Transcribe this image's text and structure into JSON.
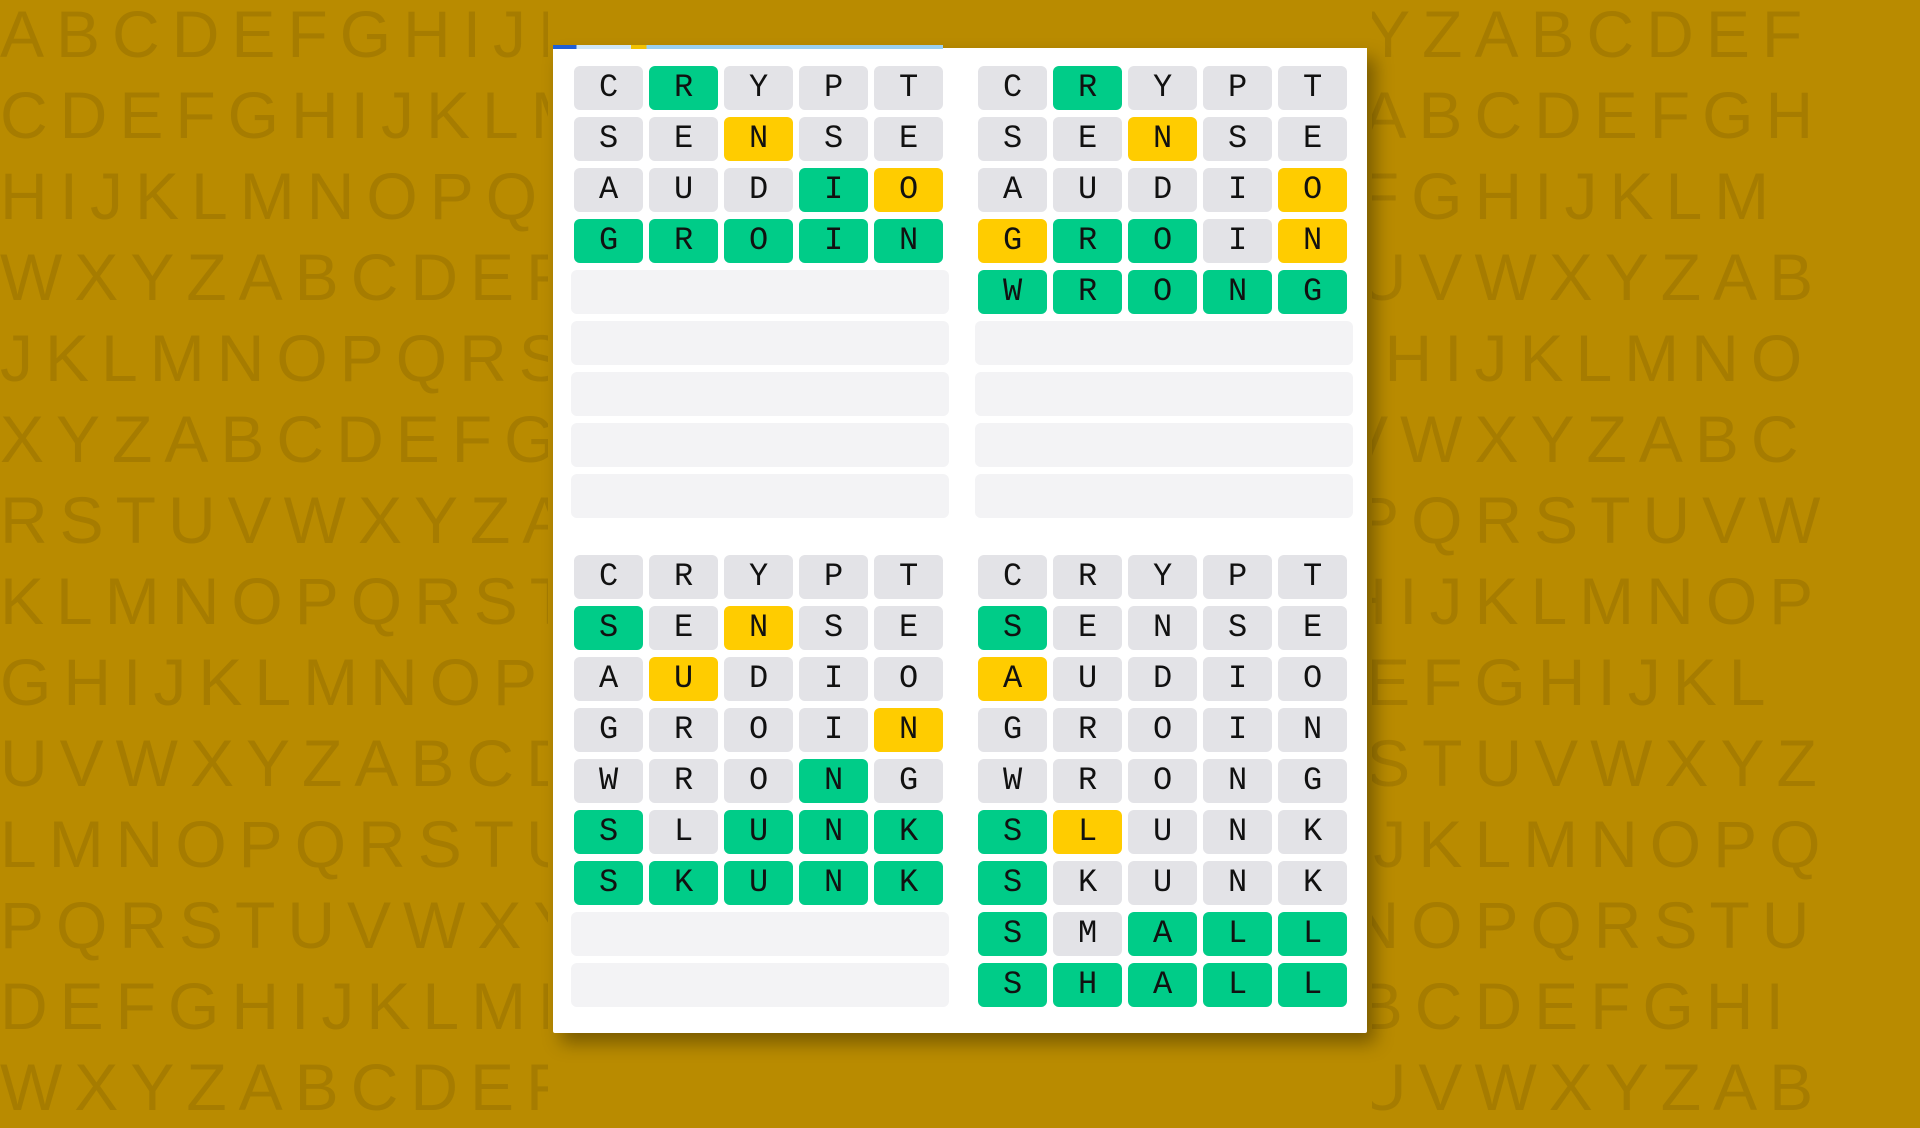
{
  "background_letter_rows": [
    "ABCDEFGHIJKLMNOPQRSTUVWXYZABCDEF",
    "CDEFGHIJKLMNOPQRSTUVWXYZABCDEFGH",
    "HIJKLMNOPQRSTUVWXYZABCDEFGHIJKLM",
    "WXYZABCDEFGHIJKLMNOPQRSTUVWXYZAB",
    "JKLMNOPQRSTUVWXYZABCDEFGHIJKLMNO",
    "XYZABCDEFGHIJKLMNOPQRSTUVWXYZABC",
    "RSTUVWXYZABCDEFGHIJKLMNOPQRSTUVW",
    "KLMNOPQRSTUVWXYZABCDEFGHIJKLMNOP",
    "GHIJKLMNOPQRSTUVWXYZABCDEFGHIJKL",
    "UVWXYZABCDEFGHIJKLMNOPQRSTUVWXYZ",
    "LMNOPQRSTUVWXYZABCDEFGHIJKLMNOPQ",
    "PQRSTUVWXYZABCDEFGHIJKLMNOPQRSTU",
    "DEFGHIJKLMNOPQRSTUVWXYZABCDEFGHI",
    "WXYZABCDEFGHIJKLMNOPQRSTUVWXYZAB"
  ],
  "colors": {
    "correct": "#00cc88",
    "present": "#ffcc00",
    "absent": "#e3e3e7",
    "empty": "#f3f3f5",
    "background": "#b98b00"
  },
  "legend_codes": {
    "c": "correct",
    "p": "present",
    "a": "absent"
  },
  "boards": [
    {
      "guesses": [
        {
          "word": "CRYPT",
          "states": "acaaa"
        },
        {
          "word": "SENSE",
          "states": "aapaa"
        },
        {
          "word": "AUDIO",
          "states": "aaacp"
        },
        {
          "word": "GROIN",
          "states": "ccccc"
        }
      ],
      "empty_rows": 5
    },
    {
      "guesses": [
        {
          "word": "CRYPT",
          "states": "acaaa"
        },
        {
          "word": "SENSE",
          "states": "aapaa"
        },
        {
          "word": "AUDIO",
          "states": "aaaap"
        },
        {
          "word": "GROIN",
          "states": "pccap"
        },
        {
          "word": "WRONG",
          "states": "ccccc"
        }
      ],
      "empty_rows": 4
    },
    {
      "guesses": [
        {
          "word": "CRYPT",
          "states": "aaaaa"
        },
        {
          "word": "SENSE",
          "states": "capaa"
        },
        {
          "word": "AUDIO",
          "states": "apaaa"
        },
        {
          "word": "GROIN",
          "states": "aaaap"
        },
        {
          "word": "WRONG",
          "states": "aaaca"
        },
        {
          "word": "SLUNK",
          "states": "caccc"
        },
        {
          "word": "SKUNK",
          "states": "ccccc"
        }
      ],
      "empty_rows": 2
    },
    {
      "guesses": [
        {
          "word": "CRYPT",
          "states": "aaaaa"
        },
        {
          "word": "SENSE",
          "states": "caaaa"
        },
        {
          "word": "AUDIO",
          "states": "paaaa"
        },
        {
          "word": "GROIN",
          "states": "aaaaa"
        },
        {
          "word": "WRONG",
          "states": "aaaaa"
        },
        {
          "word": "SLUNK",
          "states": "cpaaa"
        },
        {
          "word": "SKUNK",
          "states": "caaaa"
        },
        {
          "word": "SMALL",
          "states": "caccc"
        },
        {
          "word": "SHALL",
          "states": "ccccc"
        }
      ],
      "empty_rows": 0
    }
  ]
}
